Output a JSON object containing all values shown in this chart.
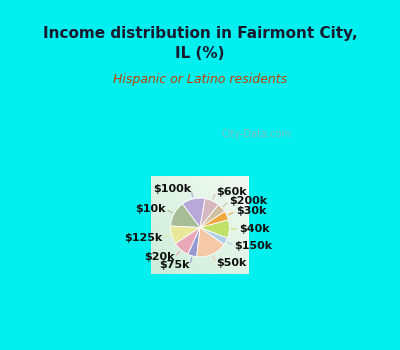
{
  "title": "Income distribution in Fairmont City,\nIL (%)",
  "subtitle": "Hispanic or Latino residents",
  "title_color": "#1a1a2e",
  "subtitle_color": "#c04000",
  "bg_cyan": "#00f0f0",
  "bg_chart_top_left": "#e8f8f4",
  "bg_chart_bottom_right": "#c8eee0",
  "watermark": "City-Data.com",
  "labels": [
    "$100k",
    "$10k",
    "$125k",
    "$20k",
    "$75k",
    "$50k",
    "$150k",
    "$40k",
    "$30k",
    "$200k",
    "$60k"
  ],
  "values": [
    13,
    14,
    10,
    9,
    5,
    17,
    4,
    10,
    5,
    5,
    8
  ],
  "colors": [
    "#b8a8d8",
    "#a8bc98",
    "#e8e898",
    "#e8a8b8",
    "#9898d0",
    "#f5c8a8",
    "#b0d0e8",
    "#c0e068",
    "#f0a840",
    "#d0c0a0",
    "#d8b8c0"
  ],
  "label_fontsize": 8,
  "start_angle": 80
}
